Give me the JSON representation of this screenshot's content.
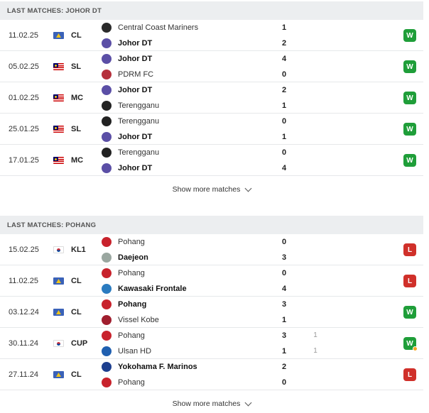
{
  "sections": [
    {
      "title": "LAST MATCHES: JOHOR DT",
      "show_more": "Show more matches",
      "matches": [
        {
          "date": "11.02.25",
          "flag": "acl",
          "comp": "CL",
          "home": {
            "name": "Central Coast Mariners",
            "logo": "#2b2b2b",
            "winner": false
          },
          "away": {
            "name": "Johor DT",
            "logo": "#5b4fa6",
            "winner": true
          },
          "score_home": "1",
          "score_away": "2",
          "pen_home": "",
          "pen_away": "",
          "result": "W",
          "pen_marker": false
        },
        {
          "date": "05.02.25",
          "flag": "my",
          "comp": "SL",
          "home": {
            "name": "Johor DT",
            "logo": "#5b4fa6",
            "winner": true
          },
          "away": {
            "name": "PDRM FC",
            "logo": "#b5303c",
            "winner": false
          },
          "score_home": "4",
          "score_away": "0",
          "pen_home": "",
          "pen_away": "",
          "result": "W",
          "pen_marker": false
        },
        {
          "date": "01.02.25",
          "flag": "my",
          "comp": "MC",
          "home": {
            "name": "Johor DT",
            "logo": "#5b4fa6",
            "winner": true
          },
          "away": {
            "name": "Terengganu",
            "logo": "#222222",
            "winner": false
          },
          "score_home": "2",
          "score_away": "1",
          "pen_home": "",
          "pen_away": "",
          "result": "W",
          "pen_marker": false
        },
        {
          "date": "25.01.25",
          "flag": "my",
          "comp": "SL",
          "home": {
            "name": "Terengganu",
            "logo": "#222222",
            "winner": false
          },
          "away": {
            "name": "Johor DT",
            "logo": "#5b4fa6",
            "winner": true
          },
          "score_home": "0",
          "score_away": "1",
          "pen_home": "",
          "pen_away": "",
          "result": "W",
          "pen_marker": false
        },
        {
          "date": "17.01.25",
          "flag": "my",
          "comp": "MC",
          "home": {
            "name": "Terengganu",
            "logo": "#222222",
            "winner": false
          },
          "away": {
            "name": "Johor DT",
            "logo": "#5b4fa6",
            "winner": true
          },
          "score_home": "0",
          "score_away": "4",
          "pen_home": "",
          "pen_away": "",
          "result": "W",
          "pen_marker": false
        }
      ]
    },
    {
      "title": "LAST MATCHES: POHANG",
      "show_more": "Show more matches",
      "matches": [
        {
          "date": "15.02.25",
          "flag": "kr",
          "comp": "KL1",
          "home": {
            "name": "Pohang",
            "logo": "#c8222c",
            "winner": false
          },
          "away": {
            "name": "Daejeon",
            "logo": "#9aa7a0",
            "winner": true
          },
          "score_home": "0",
          "score_away": "3",
          "pen_home": "",
          "pen_away": "",
          "result": "L",
          "pen_marker": false
        },
        {
          "date": "11.02.25",
          "flag": "acl",
          "comp": "CL",
          "home": {
            "name": "Pohang",
            "logo": "#c8222c",
            "winner": false
          },
          "away": {
            "name": "Kawasaki Frontale",
            "logo": "#2a7bc0",
            "winner": true
          },
          "score_home": "0",
          "score_away": "4",
          "pen_home": "",
          "pen_away": "",
          "result": "L",
          "pen_marker": false
        },
        {
          "date": "03.12.24",
          "flag": "acl",
          "comp": "CL",
          "home": {
            "name": "Pohang",
            "logo": "#c8222c",
            "winner": true
          },
          "away": {
            "name": "Vissel Kobe",
            "logo": "#a01e2e",
            "winner": false
          },
          "score_home": "3",
          "score_away": "1",
          "pen_home": "",
          "pen_away": "",
          "result": "W",
          "pen_marker": false
        },
        {
          "date": "30.11.24",
          "flag": "kr",
          "comp": "CUP",
          "home": {
            "name": "Pohang",
            "logo": "#c8222c",
            "winner": false
          },
          "away": {
            "name": "Ulsan HD",
            "logo": "#1f5fb0",
            "winner": false
          },
          "score_home": "3",
          "score_away": "1",
          "pen_home": "1",
          "pen_away": "1",
          "result": "W",
          "pen_marker": true
        },
        {
          "date": "27.11.24",
          "flag": "acl",
          "comp": "CL",
          "home": {
            "name": "Yokohama F. Marinos",
            "logo": "#1d3f8f",
            "winner": true
          },
          "away": {
            "name": "Pohang",
            "logo": "#c8222c",
            "winner": false
          },
          "score_home": "2",
          "score_away": "0",
          "pen_home": "",
          "pen_away": "",
          "result": "L",
          "pen_marker": false
        }
      ]
    }
  ]
}
